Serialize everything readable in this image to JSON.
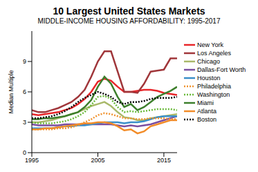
{
  "chart_data": {
    "type": "line",
    "title": "10 Largest United States Markets",
    "subtitle": "MIDDLE-INCOME HOUSING AFFORDABILITY: 1995-2017",
    "y_label": "Median Multiple",
    "x": [
      1995,
      1996,
      1997,
      1998,
      1999,
      2000,
      2001,
      2002,
      2003,
      2004,
      2005,
      2006,
      2007,
      2008,
      2009,
      2010,
      2011,
      2012,
      2013,
      2014,
      2015,
      2016,
      2017
    ],
    "xlim": [
      1995,
      2017
    ],
    "xticks": [
      1995,
      2005,
      2015
    ],
    "ylim": [
      0,
      12
    ],
    "yticks": [
      0,
      3,
      6,
      9
    ],
    "legend": "right",
    "series": [
      {
        "name": "New York",
        "color": "#e8262a",
        "line_style": "solid",
        "values": [
          3.8,
          3.7,
          3.8,
          3.9,
          4.0,
          4.2,
          4.4,
          4.8,
          5.3,
          6.0,
          7.0,
          7.3,
          7.1,
          6.5,
          6.0,
          6.0,
          6.1,
          6.2,
          6.2,
          6.1,
          5.9,
          5.8,
          5.7
        ]
      },
      {
        "name": "Los Angeles",
        "color": "#a0363a",
        "line_style": "solid",
        "values": [
          4.2,
          4.0,
          4.0,
          4.2,
          4.4,
          4.7,
          5.0,
          5.5,
          6.2,
          7.5,
          9.0,
          10.0,
          10.0,
          8.0,
          6.0,
          6.0,
          5.9,
          6.8,
          8.0,
          8.1,
          8.2,
          9.3,
          9.3
        ]
      },
      {
        "name": "Chicago",
        "color": "#a9b96a",
        "line_style": "solid",
        "values": [
          3.0,
          3.0,
          3.1,
          3.2,
          3.4,
          3.6,
          3.8,
          4.0,
          4.3,
          4.6,
          4.8,
          5.0,
          4.6,
          4.0,
          3.5,
          3.4,
          3.2,
          3.2,
          3.4,
          3.5,
          3.6,
          3.7,
          3.8
        ]
      },
      {
        "name": "Dallas-Fort Worth",
        "color": "#7b4ea0",
        "line_style": "solid",
        "values": [
          2.8,
          2.7,
          2.7,
          2.7,
          2.7,
          2.8,
          2.8,
          2.8,
          2.8,
          2.8,
          2.8,
          2.8,
          2.8,
          2.7,
          2.6,
          2.7,
          2.6,
          2.7,
          2.8,
          3.0,
          3.2,
          3.4,
          3.6
        ]
      },
      {
        "name": "Houston",
        "color": "#3a8fc9",
        "line_style": "solid",
        "values": [
          2.4,
          2.4,
          2.4,
          2.4,
          2.5,
          2.6,
          2.6,
          2.7,
          2.7,
          2.8,
          2.9,
          3.0,
          3.0,
          3.0,
          2.9,
          3.0,
          3.0,
          3.1,
          3.3,
          3.5,
          3.6,
          3.6,
          3.6
        ]
      },
      {
        "name": "Philadelphia",
        "color": "#f0922e",
        "line_style": "dotted",
        "values": [
          2.3,
          2.3,
          2.3,
          2.3,
          2.4,
          2.4,
          2.5,
          2.7,
          3.0,
          3.3,
          3.7,
          3.9,
          3.8,
          3.6,
          3.4,
          3.4,
          3.3,
          3.3,
          3.4,
          3.4,
          3.4,
          3.3,
          3.3
        ]
      },
      {
        "name": "Washington",
        "color": "#6aba3a",
        "line_style": "dotted",
        "values": [
          3.0,
          2.9,
          2.9,
          2.9,
          3.0,
          3.1,
          3.3,
          3.6,
          4.0,
          4.7,
          5.5,
          5.6,
          5.3,
          4.5,
          4.0,
          4.1,
          4.0,
          4.1,
          4.2,
          4.3,
          4.3,
          4.3,
          4.2
        ]
      },
      {
        "name": "Miami",
        "color": "#3d7f2c",
        "line_style": "solid",
        "values": [
          3.3,
          3.3,
          3.4,
          3.4,
          3.5,
          3.6,
          3.8,
          4.0,
          4.5,
          5.2,
          6.5,
          7.5,
          6.8,
          5.5,
          4.5,
          4.8,
          4.2,
          4.5,
          5.0,
          5.5,
          5.8,
          6.1,
          6.5
        ]
      },
      {
        "name": "Atlanta",
        "color": "#f28c28",
        "line_style": "solid",
        "values": [
          2.3,
          2.3,
          2.4,
          2.4,
          2.5,
          2.6,
          2.7,
          2.8,
          2.9,
          2.9,
          3.0,
          3.0,
          2.9,
          2.6,
          2.2,
          2.3,
          1.9,
          2.1,
          2.6,
          2.8,
          3.0,
          3.2,
          3.2
        ]
      },
      {
        "name": "Boston",
        "color": "#000000",
        "line_style": "dotted",
        "values": [
          3.4,
          3.4,
          3.5,
          3.6,
          3.8,
          4.1,
          4.5,
          5.0,
          5.4,
          5.7,
          6.0,
          5.8,
          5.5,
          5.0,
          4.8,
          5.0,
          5.0,
          5.1,
          5.3,
          5.4,
          5.4,
          5.4,
          5.5
        ]
      }
    ]
  }
}
